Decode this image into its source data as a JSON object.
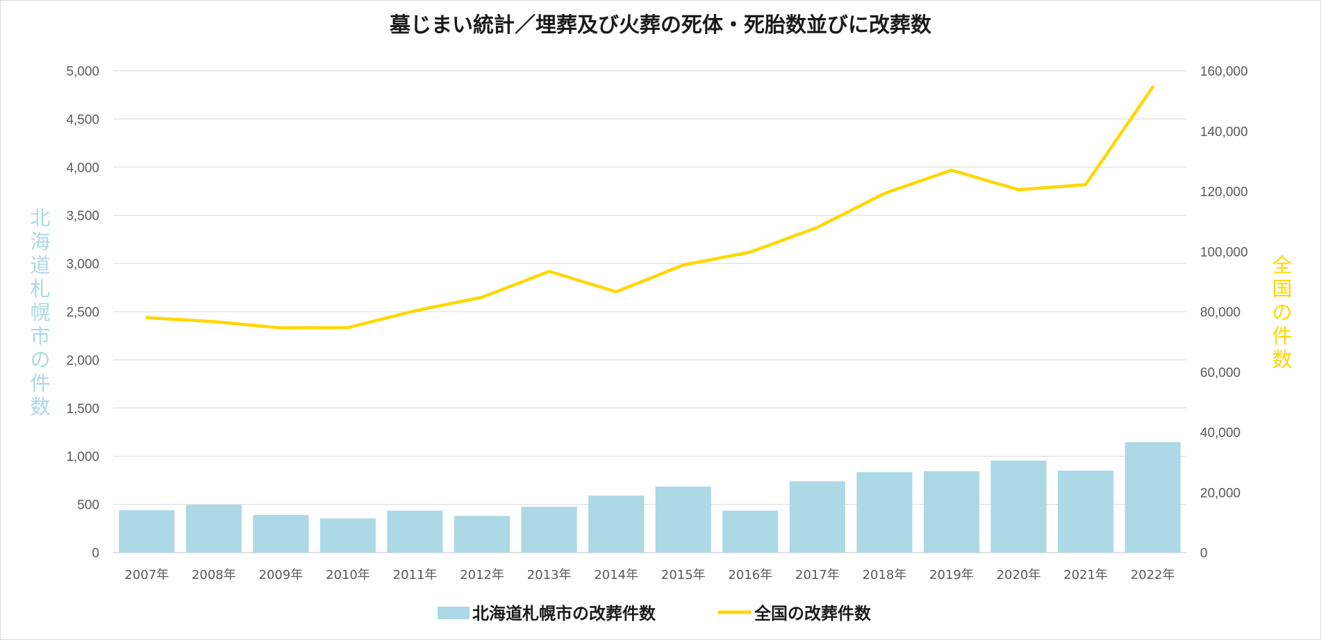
{
  "chart_data": {
    "type": "bar+line",
    "title": "墓じまい統計／埋葬及び火葬の死体・死胎数並びに改葬数",
    "categories": [
      "2007年",
      "2008年",
      "2009年",
      "2010年",
      "2011年",
      "2012年",
      "2013年",
      "2014年",
      "2015年",
      "2016年",
      "2017年",
      "2018年",
      "2019年",
      "2020年",
      "2021年",
      "2022年"
    ],
    "series": [
      {
        "name": "北海道札幌市の改葬件数",
        "type": "bar",
        "axis": "left",
        "color": "#add8e6",
        "values": [
          440,
          495,
          390,
          355,
          435,
          380,
          475,
          590,
          685,
          435,
          740,
          835,
          845,
          955,
          850,
          1145
        ]
      },
      {
        "name": "全国の改葬件数",
        "type": "line",
        "axis": "right",
        "color": "#ffd700",
        "values": [
          78000,
          76700,
          74600,
          74700,
          80300,
          84800,
          93400,
          86600,
          95500,
          99800,
          108000,
          119300,
          127000,
          120500,
          122200,
          154600
        ]
      }
    ],
    "y_left": {
      "label": "北海道札幌市の件数",
      "label_color": "#add8e6",
      "range": [
        0,
        5000
      ],
      "ticks": [
        "0",
        "500",
        "1,000",
        "1,500",
        "2,000",
        "2,500",
        "3,000",
        "3,500",
        "4,000",
        "4,500",
        "5,000"
      ]
    },
    "y_right": {
      "label": "全国の件数",
      "label_color": "#ffd700",
      "range": [
        0,
        160000
      ],
      "ticks": [
        "0",
        "20,000",
        "40,000",
        "60,000",
        "80,000",
        "100,000",
        "120,000",
        "140,000",
        "160,000"
      ]
    },
    "grid": true,
    "legend": "bottom"
  }
}
